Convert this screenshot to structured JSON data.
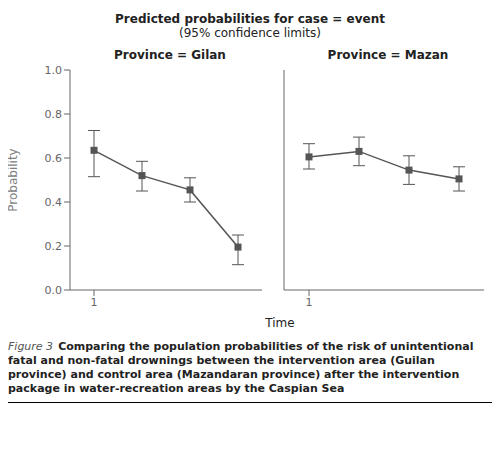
{
  "chart_data": {
    "type": "line",
    "title": "Predicted probabilities for case = event",
    "subtitle": "(95% confidence limits)",
    "xlabel": "Time",
    "ylabel": "Probability",
    "annotations": [
      "Figure 3",
      "Comparing the population probabilities of the risk of unintentional fatal and non-fatal drownings between the intervention area (Guilan province) and control area (Mazandaran province) after the intervention package in water-recreation areas by the Caspian Sea"
    ],
    "xlim": [
      0.5,
      4.5
    ],
    "xticks": [
      1
    ],
    "ylim": [
      0.0,
      1.0
    ],
    "yticks": [
      {
        "value": 0.0,
        "label": "0.0"
      },
      0.2,
      0.4,
      0.6,
      0.8,
      {
        "value": 1.0,
        "label": "1.0"
      }
    ],
    "grid": false,
    "color": "#555555",
    "marker": "square",
    "panels": [
      {
        "title": "Province = Gilan",
        "x": [
          1,
          2,
          3,
          4
        ],
        "values": [
          0.635,
          0.52,
          0.455,
          0.195
        ],
        "error_low": [
          0.12,
          0.07,
          0.055,
          0.08
        ],
        "error_high": [
          0.09,
          0.065,
          0.055,
          0.055
        ],
        "tick_labels": true
      },
      {
        "title": "Province = Mazan",
        "x": [
          1,
          2,
          3,
          4
        ],
        "values": [
          0.605,
          0.63,
          0.545,
          0.505
        ],
        "error_low": [
          0.055,
          0.065,
          0.065,
          0.055
        ],
        "error_high": [
          0.06,
          0.065,
          0.065,
          0.055
        ],
        "tick_labels": "x"
      }
    ]
  }
}
